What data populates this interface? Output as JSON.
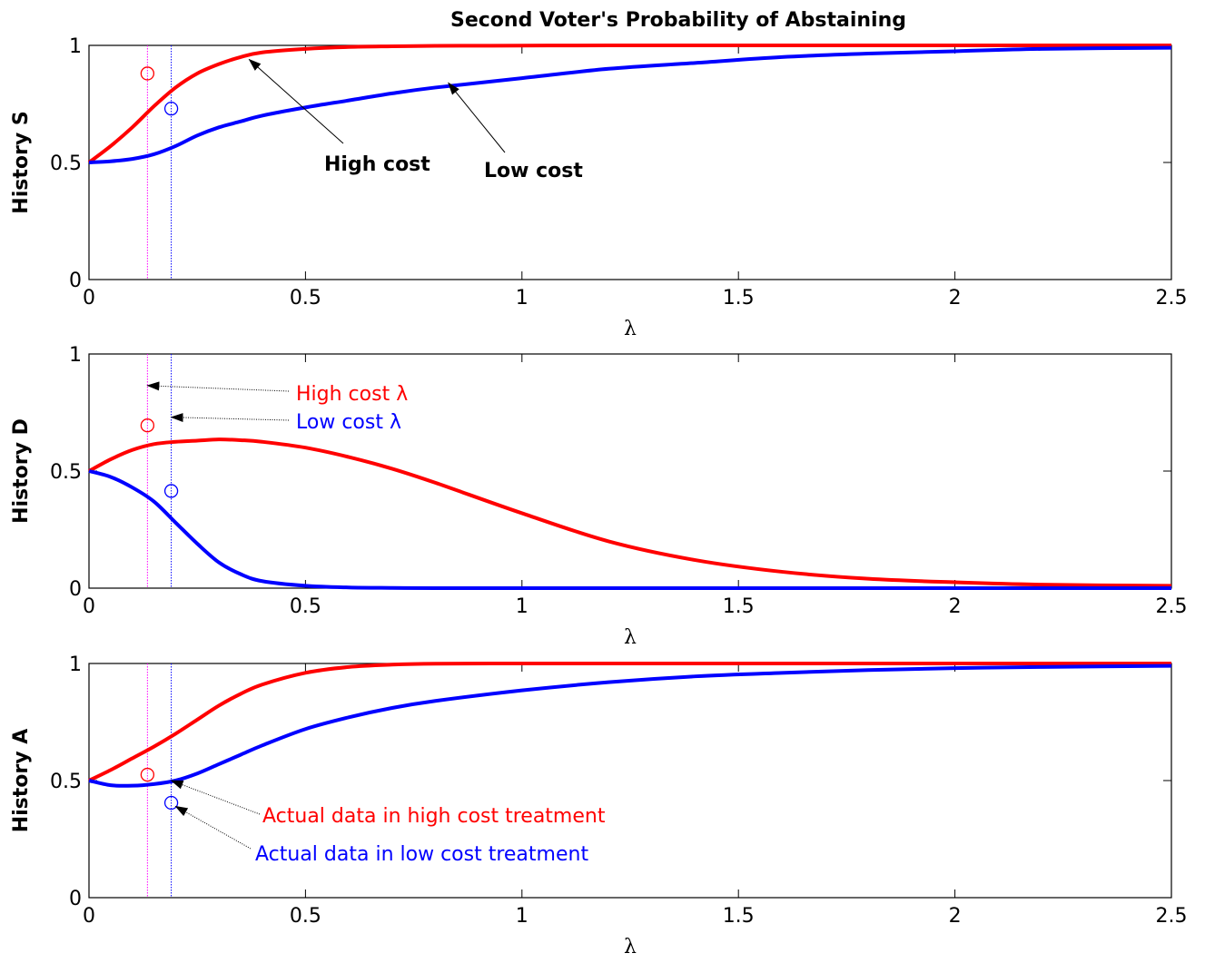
{
  "figure": {
    "title": "Second Voter's Probability of Abstaining"
  },
  "colors": {
    "high_cost": "#ff0000",
    "low_cost": "#0000ff",
    "high_cost_marker_line": "#ff00ff",
    "low_cost_marker_line": "#0000ff",
    "axis": "#000000"
  },
  "chart_data": [
    {
      "type": "line",
      "ylabel": "History S",
      "xlabel": "λ",
      "xlim": [
        0,
        2.5
      ],
      "ylim": [
        0,
        1
      ],
      "xticks": [
        "0",
        "0.5",
        "1",
        "1.5",
        "2",
        "2.5"
      ],
      "yticks": [
        "0",
        "0.5",
        "1"
      ],
      "grid": false,
      "x": [
        0,
        0.05,
        0.1,
        0.15,
        0.2,
        0.25,
        0.3,
        0.35,
        0.4,
        0.5,
        0.6,
        0.7,
        0.8,
        1.0,
        1.2,
        1.4,
        1.6,
        1.8,
        2.0,
        2.2,
        2.5
      ],
      "series": [
        {
          "key": "high",
          "values": [
            0.5,
            0.57,
            0.65,
            0.74,
            0.82,
            0.88,
            0.92,
            0.95,
            0.97,
            0.985,
            0.993,
            0.996,
            0.998,
            0.999,
            1.0,
            1.0,
            1.0,
            1.0,
            1.0,
            1.0,
            1.0
          ]
        },
        {
          "key": "low",
          "values": [
            0.5,
            0.505,
            0.515,
            0.535,
            0.57,
            0.615,
            0.65,
            0.675,
            0.7,
            0.735,
            0.765,
            0.795,
            0.82,
            0.86,
            0.9,
            0.925,
            0.95,
            0.965,
            0.975,
            0.985,
            0.99
          ]
        }
      ],
      "actual_points": [
        {
          "key": "high",
          "x": 0.135,
          "y": 0.88
        },
        {
          "key": "low",
          "x": 0.19,
          "y": 0.73
        }
      ],
      "lambda_lines": [
        {
          "key": "high",
          "x": 0.135
        },
        {
          "key": "low",
          "x": 0.19
        }
      ],
      "annotations": [
        {
          "text": "High cost",
          "style": "bold",
          "color_key": "axis",
          "arrow_to": [
            0.37,
            0.94
          ]
        },
        {
          "text": "Low cost",
          "style": "bold",
          "color_key": "axis",
          "arrow_to": [
            0.83,
            0.84
          ]
        }
      ]
    },
    {
      "type": "line",
      "ylabel": "History D",
      "xlabel": "λ",
      "xlim": [
        0,
        2.5
      ],
      "ylim": [
        0,
        1
      ],
      "xticks": [
        "0",
        "0.5",
        "1",
        "1.5",
        "2",
        "2.5"
      ],
      "yticks": [
        "0",
        "0.5",
        "1"
      ],
      "grid": false,
      "x": [
        0,
        0.05,
        0.1,
        0.15,
        0.2,
        0.25,
        0.3,
        0.35,
        0.4,
        0.5,
        0.6,
        0.7,
        0.8,
        1.0,
        1.2,
        1.4,
        1.6,
        1.8,
        2.0,
        2.2,
        2.5
      ],
      "series": [
        {
          "key": "high",
          "values": [
            0.5,
            0.55,
            0.59,
            0.615,
            0.625,
            0.63,
            0.635,
            0.632,
            0.625,
            0.6,
            0.56,
            0.51,
            0.45,
            0.32,
            0.2,
            0.12,
            0.07,
            0.04,
            0.025,
            0.015,
            0.01
          ]
        },
        {
          "key": "low",
          "values": [
            0.5,
            0.475,
            0.43,
            0.37,
            0.28,
            0.19,
            0.11,
            0.06,
            0.03,
            0.01,
            0.003,
            0.001,
            0.0,
            0.0,
            0.0,
            0.0,
            0.0,
            0.0,
            0.0,
            0.0,
            0.0
          ]
        }
      ],
      "actual_points": [
        {
          "key": "high",
          "x": 0.135,
          "y": 0.695
        },
        {
          "key": "low",
          "x": 0.19,
          "y": 0.415
        }
      ],
      "lambda_lines": [
        {
          "key": "high",
          "x": 0.135
        },
        {
          "key": "low",
          "x": 0.19
        }
      ],
      "annotations": [
        {
          "text": "High cost λ",
          "style": "normal",
          "color_key": "high_cost",
          "arrow_to": [
            0.135,
            0.865
          ]
        },
        {
          "text": "Low cost λ",
          "style": "normal",
          "color_key": "low_cost",
          "arrow_to": [
            0.19,
            0.73
          ]
        }
      ]
    },
    {
      "type": "line",
      "ylabel": "History A",
      "xlabel": "λ",
      "xlim": [
        0,
        2.5
      ],
      "ylim": [
        0,
        1
      ],
      "xticks": [
        "0",
        "0.5",
        "1",
        "1.5",
        "2",
        "2.5"
      ],
      "yticks": [
        "0",
        "0.5",
        "1"
      ],
      "grid": false,
      "x": [
        0,
        0.05,
        0.1,
        0.15,
        0.2,
        0.25,
        0.3,
        0.35,
        0.4,
        0.5,
        0.6,
        0.7,
        0.8,
        1.0,
        1.2,
        1.4,
        1.6,
        1.8,
        2.0,
        2.2,
        2.5
      ],
      "series": [
        {
          "key": "high",
          "values": [
            0.5,
            0.545,
            0.595,
            0.645,
            0.7,
            0.76,
            0.82,
            0.87,
            0.91,
            0.96,
            0.985,
            0.995,
            0.999,
            1.0,
            1.0,
            1.0,
            1.0,
            1.0,
            1.0,
            1.0,
            1.0
          ]
        },
        {
          "key": "low",
          "values": [
            0.5,
            0.48,
            0.478,
            0.485,
            0.5,
            0.53,
            0.57,
            0.61,
            0.65,
            0.72,
            0.77,
            0.81,
            0.84,
            0.885,
            0.92,
            0.945,
            0.96,
            0.972,
            0.98,
            0.985,
            0.99
          ]
        }
      ],
      "actual_points": [
        {
          "key": "high",
          "x": 0.135,
          "y": 0.525
        },
        {
          "key": "low",
          "x": 0.19,
          "y": 0.405
        }
      ],
      "lambda_lines": [
        {
          "key": "high",
          "x": 0.135
        },
        {
          "key": "low",
          "x": 0.19
        }
      ],
      "annotations": [
        {
          "text": "Actual data in high cost treatment",
          "style": "normal",
          "color_key": "high_cost",
          "arrow_to": [
            0.19,
            0.5
          ]
        },
        {
          "text": "Actual data in low cost treatment",
          "style": "normal",
          "color_key": "low_cost",
          "arrow_to": [
            0.2,
            0.39
          ]
        }
      ]
    }
  ]
}
